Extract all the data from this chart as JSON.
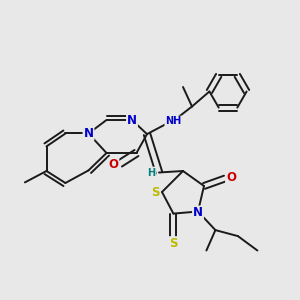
{
  "bg_color": "#e8e8e8",
  "bond_color": "#1a1a1a",
  "bond_width": 1.4,
  "dbo": 0.012,
  "atom_colors": {
    "N": "#0000cc",
    "O": "#cc0000",
    "S": "#bbbb00",
    "H": "#008080",
    "C": "#1a1a1a"
  },
  "fs": 8.5,
  "fss": 7.0
}
